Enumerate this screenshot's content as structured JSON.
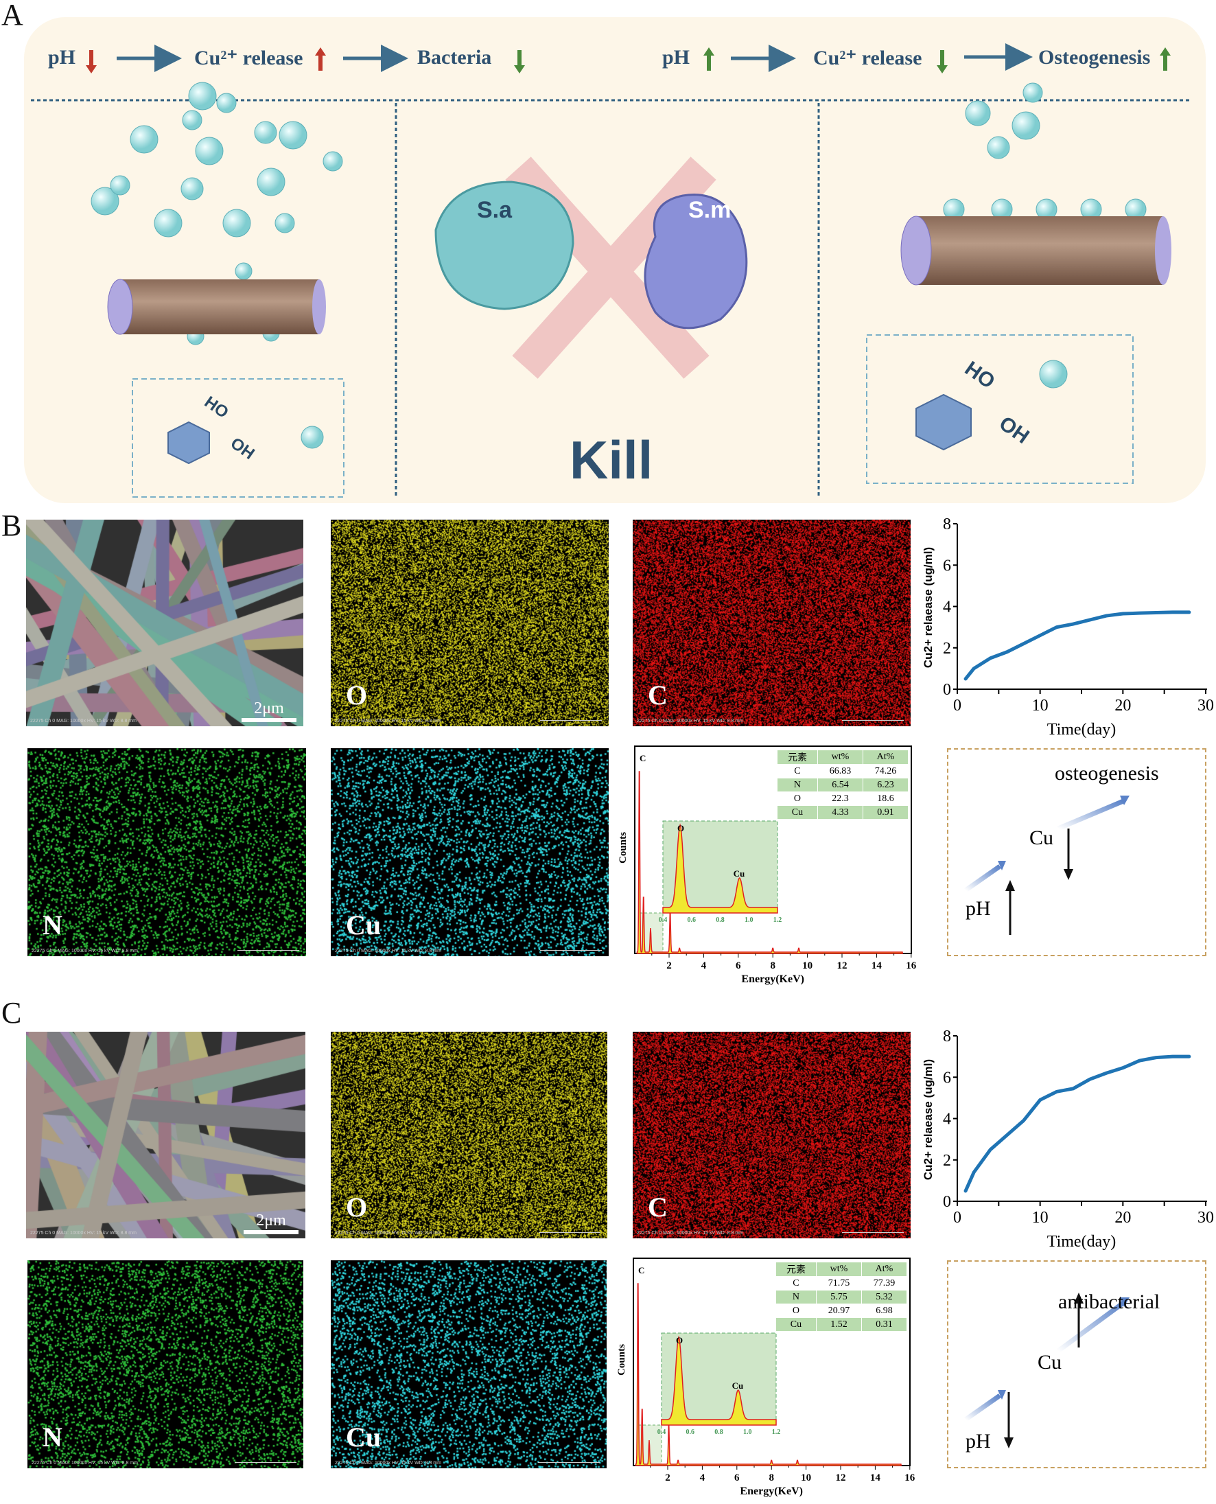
{
  "panels": {
    "a": "A",
    "b": "B",
    "c": "C"
  },
  "panelA": {
    "left_flow": [
      "pH",
      "Cu²⁺ release",
      "Bacteria"
    ],
    "right_flow": [
      "pH",
      "Cu²⁺ release",
      "Osteogenesis"
    ],
    "bacteria": [
      "S.a",
      "S.m"
    ],
    "kill": "Kill",
    "groups": [
      "HO",
      "OH"
    ],
    "arrow_colors": {
      "up_red": "#c0392b",
      "green": "#4a8a3a",
      "flow": "#3e6d8c"
    }
  },
  "map_labels": {
    "o": "O",
    "c": "C",
    "n": "N",
    "cu": "Cu"
  },
  "scale_bar": "2μm",
  "micro_text": "22275  Ch 0   MAG: 10000x   HV: 15 kV   WD: 8.8 mm",
  "eds": [
    {
      "table": {
        "header": [
          "元素",
          "wt%",
          "At%"
        ],
        "rows": [
          [
            "C",
            "66.83",
            "74.26"
          ],
          [
            "N",
            "6.54",
            "6.23"
          ],
          [
            "O",
            "22.3",
            "18.6"
          ],
          [
            "Cu",
            "4.33",
            "0.91"
          ]
        ]
      },
      "ylabel": "Counts",
      "xlabel": "Energy(KeV)",
      "xticks": [
        2,
        4,
        6,
        8,
        10,
        12,
        14,
        16
      ],
      "inset_xticks": [
        "0.4",
        "0.6",
        "0.8",
        "1.0",
        "1.2"
      ],
      "peaks": {
        "main": "C",
        "inset": [
          "O",
          "Cu"
        ]
      }
    },
    {
      "table": {
        "header": [
          "元素",
          "wt%",
          "At%"
        ],
        "rows": [
          [
            "C",
            "71.75",
            "77.39"
          ],
          [
            "N",
            "5.75",
            "5.32"
          ],
          [
            "O",
            "20.97",
            "6.98"
          ],
          [
            "Cu",
            "1.52",
            "0.31"
          ]
        ]
      },
      "ylabel": "Counts",
      "xlabel": "Energy(KeV)",
      "xticks": [
        2,
        4,
        6,
        8,
        10,
        12,
        14,
        16
      ],
      "inset_xticks": [
        "0.4",
        "0.6",
        "0.8",
        "1.0",
        "1.2"
      ],
      "peaks": {
        "main": "C",
        "inset": [
          "O",
          "Cu"
        ]
      }
    }
  ],
  "schemes": [
    {
      "label": "osteogenesis",
      "cu": "Cu",
      "ph": "pH",
      "cu_dir": "down",
      "ph_dir": "up"
    },
    {
      "label": "antibacterial",
      "cu": "Cu",
      "ph": "pH",
      "cu_dir": "up",
      "ph_dir": "down"
    }
  ],
  "chart_data": [
    {
      "type": "line",
      "xlabel": "Time(day)",
      "ylabel": "Cu2+ relaease (ug/ml)",
      "xlim": [
        0,
        30
      ],
      "ylim": [
        0,
        8
      ],
      "xticks": [
        0,
        10,
        20,
        30
      ],
      "yticks": [
        0,
        2,
        4,
        6,
        8
      ],
      "color": "#1f74b4",
      "grid": false,
      "x": [
        1,
        2,
        4,
        6,
        8,
        10,
        12,
        14,
        16,
        18,
        20,
        22,
        24,
        26,
        28
      ],
      "y": [
        0.5,
        1.0,
        1.5,
        1.8,
        2.2,
        2.6,
        3.0,
        3.15,
        3.35,
        3.55,
        3.65,
        3.68,
        3.7,
        3.72,
        3.72
      ]
    },
    {
      "type": "line",
      "xlabel": "Time(day)",
      "ylabel": "Cu2+ relaease (ug/ml)",
      "xlim": [
        0,
        30
      ],
      "ylim": [
        0,
        8
      ],
      "xticks": [
        0,
        10,
        20,
        30
      ],
      "yticks": [
        0,
        2,
        4,
        6,
        8
      ],
      "color": "#1f74b4",
      "grid": false,
      "x": [
        1,
        2,
        4,
        6,
        8,
        10,
        12,
        14,
        16,
        18,
        20,
        22,
        24,
        26,
        28
      ],
      "y": [
        0.5,
        1.4,
        2.5,
        3.2,
        3.9,
        4.9,
        5.3,
        5.45,
        5.9,
        6.2,
        6.45,
        6.8,
        6.95,
        7.0,
        7.0
      ]
    }
  ]
}
